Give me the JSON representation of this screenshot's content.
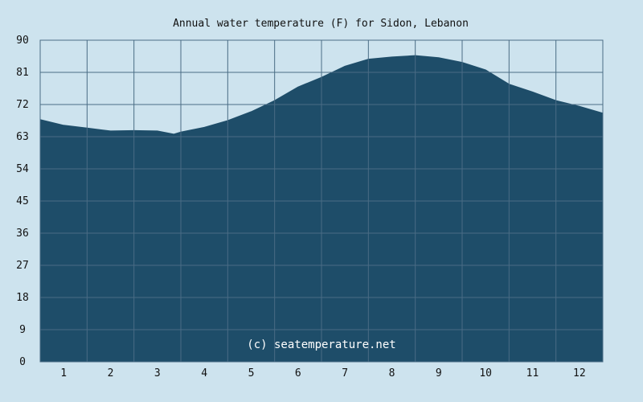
{
  "chart_data": {
    "type": "area",
    "title": "Annual water temperature (F) for Sidon, Lebanon",
    "xlabel": "",
    "ylabel": "",
    "x_ticks": [
      "1",
      "2",
      "3",
      "4",
      "5",
      "6",
      "7",
      "8",
      "9",
      "10",
      "11",
      "12"
    ],
    "y_ticks": [
      "0",
      "9",
      "18",
      "27",
      "36",
      "45",
      "54",
      "63",
      "72",
      "81",
      "90"
    ],
    "xlim": [
      0.5,
      12.5
    ],
    "ylim": [
      0,
      90
    ],
    "grid": true,
    "x": [
      0.5,
      1.0,
      1.5,
      2.0,
      2.5,
      3.0,
      3.35,
      3.5,
      4.0,
      4.5,
      5.0,
      5.5,
      6.0,
      6.5,
      7.0,
      7.5,
      8.0,
      8.5,
      9.0,
      9.5,
      10.0,
      10.5,
      11.0,
      11.5,
      12.0,
      12.5
    ],
    "values": [
      67.8,
      66.2,
      65.4,
      64.6,
      64.7,
      64.6,
      63.7,
      64.3,
      65.6,
      67.5,
      70.0,
      73.1,
      76.9,
      79.6,
      82.7,
      84.7,
      85.3,
      85.7,
      85.1,
      83.8,
      81.7,
      77.7,
      75.5,
      73.1,
      71.5,
      69.6
    ],
    "watermark": "(c) seatemperature.net",
    "colors": {
      "background": "#cde3ee",
      "plot_background": "#cde3ee",
      "area_fill": "#1e4d69",
      "grid": "#4a6c85",
      "text": "#111111",
      "watermark": "#ffffff"
    }
  }
}
